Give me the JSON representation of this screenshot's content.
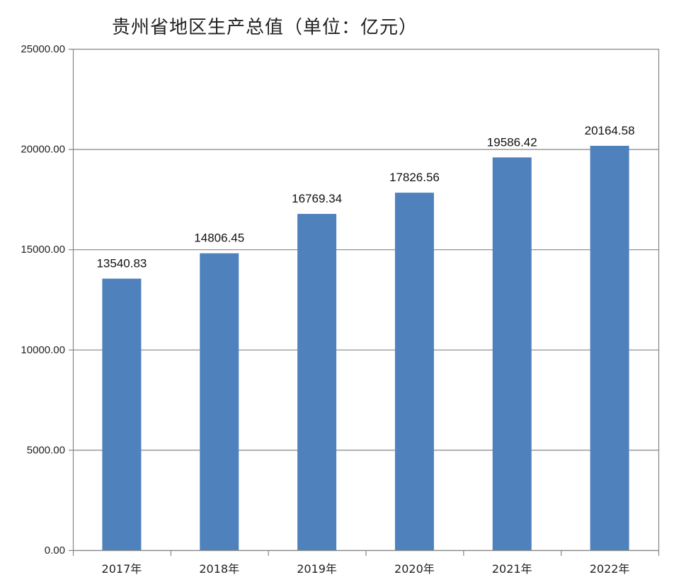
{
  "chart_data": {
    "type": "bar",
    "title": "贵州省地区生产总值（单位：亿元）",
    "xlabel": "",
    "ylabel": "",
    "categories": [
      "2017年",
      "2018年",
      "2019年",
      "2020年",
      "2021年",
      "2022年"
    ],
    "values": [
      13540.83,
      14806.45,
      16769.34,
      17826.56,
      19586.42,
      20164.58
    ],
    "value_labels": [
      "13540.83",
      "14806.45",
      "16769.34",
      "17826.56",
      "19586.42",
      "20164.58"
    ],
    "ylim": [
      0,
      25000
    ],
    "yticks": [
      0,
      5000,
      10000,
      15000,
      20000,
      25000
    ],
    "ytick_labels": [
      "0.00",
      "5000.00",
      "10000.00",
      "15000.00",
      "20000.00",
      "25000.00"
    ],
    "grid": true,
    "legend": "none",
    "colors": {
      "bar": "#4f81bd",
      "grid": "#868686",
      "axis": "#868686"
    }
  }
}
